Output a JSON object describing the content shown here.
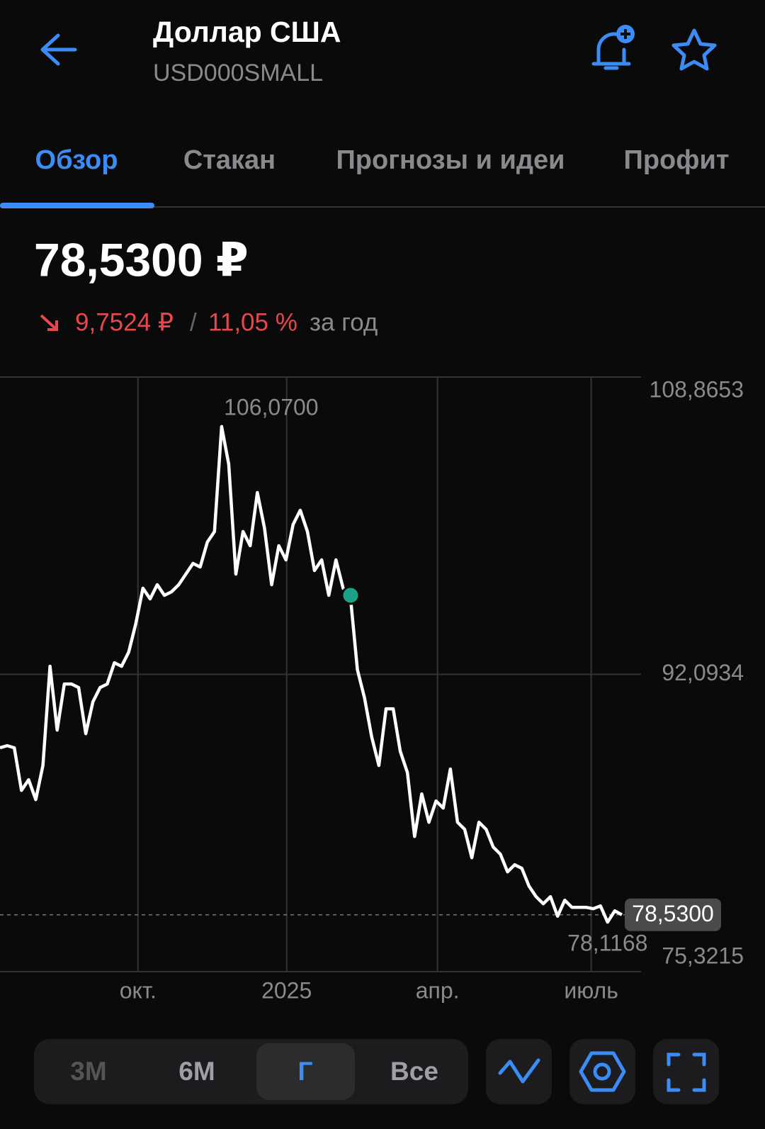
{
  "header": {
    "title": "Доллар США",
    "ticker": "USD000SMALL"
  },
  "tabs": [
    "Обзор",
    "Стакан",
    "Прогнозы и идеи",
    "Профит"
  ],
  "price": "78,5300 ₽",
  "change": {
    "abs": "9,7524 ₽",
    "sep": "/",
    "pct": "11,05 %",
    "period": "за год"
  },
  "ranges": [
    "3M",
    "6M",
    "Г",
    "Все"
  ],
  "chart_data": {
    "type": "line",
    "color": "#ffffff",
    "values": [
      87.95,
      88.07,
      87.95,
      85.55,
      86.15,
      85.03,
      86.95,
      92.55,
      88.95,
      91.55,
      91.55,
      91.35,
      88.75,
      90.55,
      91.35,
      91.55,
      92.75,
      92.55,
      93.35,
      94.95,
      96.95,
      96.35,
      97.15,
      96.55,
      96.75,
      97.15,
      97.75,
      98.35,
      98.15,
      99.55,
      100.15,
      106.07,
      103.95,
      97.75,
      100.15,
      99.35,
      102.35,
      100.35,
      97.15,
      99.35,
      98.55,
      100.55,
      101.35,
      100.15,
      97.95,
      98.55,
      96.55,
      98.55,
      96.95,
      96.55,
      92.35,
      90.75,
      88.55,
      86.95,
      90.15,
      90.15,
      87.75,
      86.55,
      82.95,
      85.35,
      83.75,
      84.95,
      84.55,
      86.75,
      83.75,
      83.35,
      81.75,
      83.75,
      83.35,
      82.35,
      81.95,
      80.95,
      81.35,
      81.15,
      80.15,
      79.55,
      79.15,
      79.55,
      78.45,
      79.35,
      78.95,
      78.95,
      78.95,
      78.87,
      79.03,
      78.1168,
      78.75,
      78.53
    ],
    "xlim": [
      0,
      87
    ],
    "xticks": [
      {
        "value": 19.3,
        "label": "окт."
      },
      {
        "value": 40.1,
        "label": "2025"
      },
      {
        "value": 61.2,
        "label": "апр."
      },
      {
        "value": 82.7,
        "label": "июль"
      }
    ],
    "ylim": [
      75.3215,
      108.8653
    ],
    "yticks": [
      {
        "value": 75.3215,
        "label": "75,3215"
      },
      {
        "value": 92.0934,
        "label": "92,0934"
      },
      {
        "value": 108.8653,
        "label": "108,8653"
      }
    ],
    "grid": true,
    "max_label": "106,0700",
    "min_label": "78,1168",
    "last_label": "78,5300"
  }
}
